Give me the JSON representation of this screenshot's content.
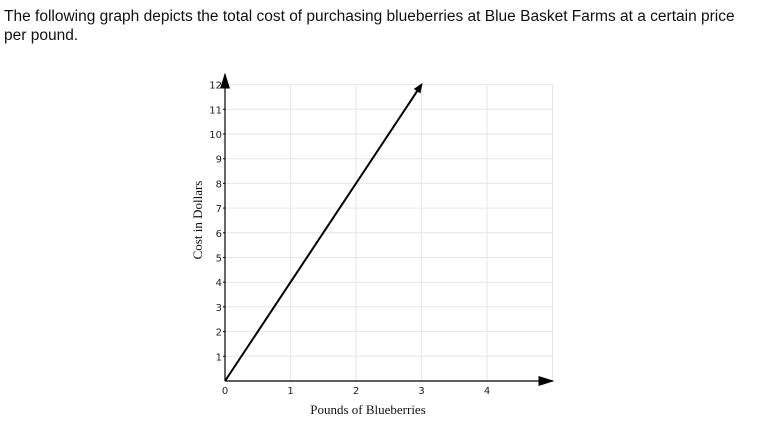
{
  "question": "The following graph depicts the total cost of purchasing blueberries at Blue Basket Farms at a certain price per pound.",
  "chart_data": {
    "type": "line",
    "xlabel": "Pounds of Blueberries",
    "ylabel": "Cost in Dollars",
    "xlim": [
      0,
      5
    ],
    "ylim": [
      0,
      12
    ],
    "xticks": [
      "0",
      "1",
      "2",
      "3",
      "4"
    ],
    "yticks": [
      "1",
      "2",
      "3",
      "4",
      "5",
      "6",
      "7",
      "8",
      "9",
      "10",
      "11",
      "12"
    ],
    "grid": true,
    "series": [
      {
        "x": [
          0,
          3
        ],
        "y": [
          0,
          12
        ],
        "arrow_end": true
      }
    ],
    "line_color": "#000000",
    "grid_color": "#e6e6e6"
  }
}
